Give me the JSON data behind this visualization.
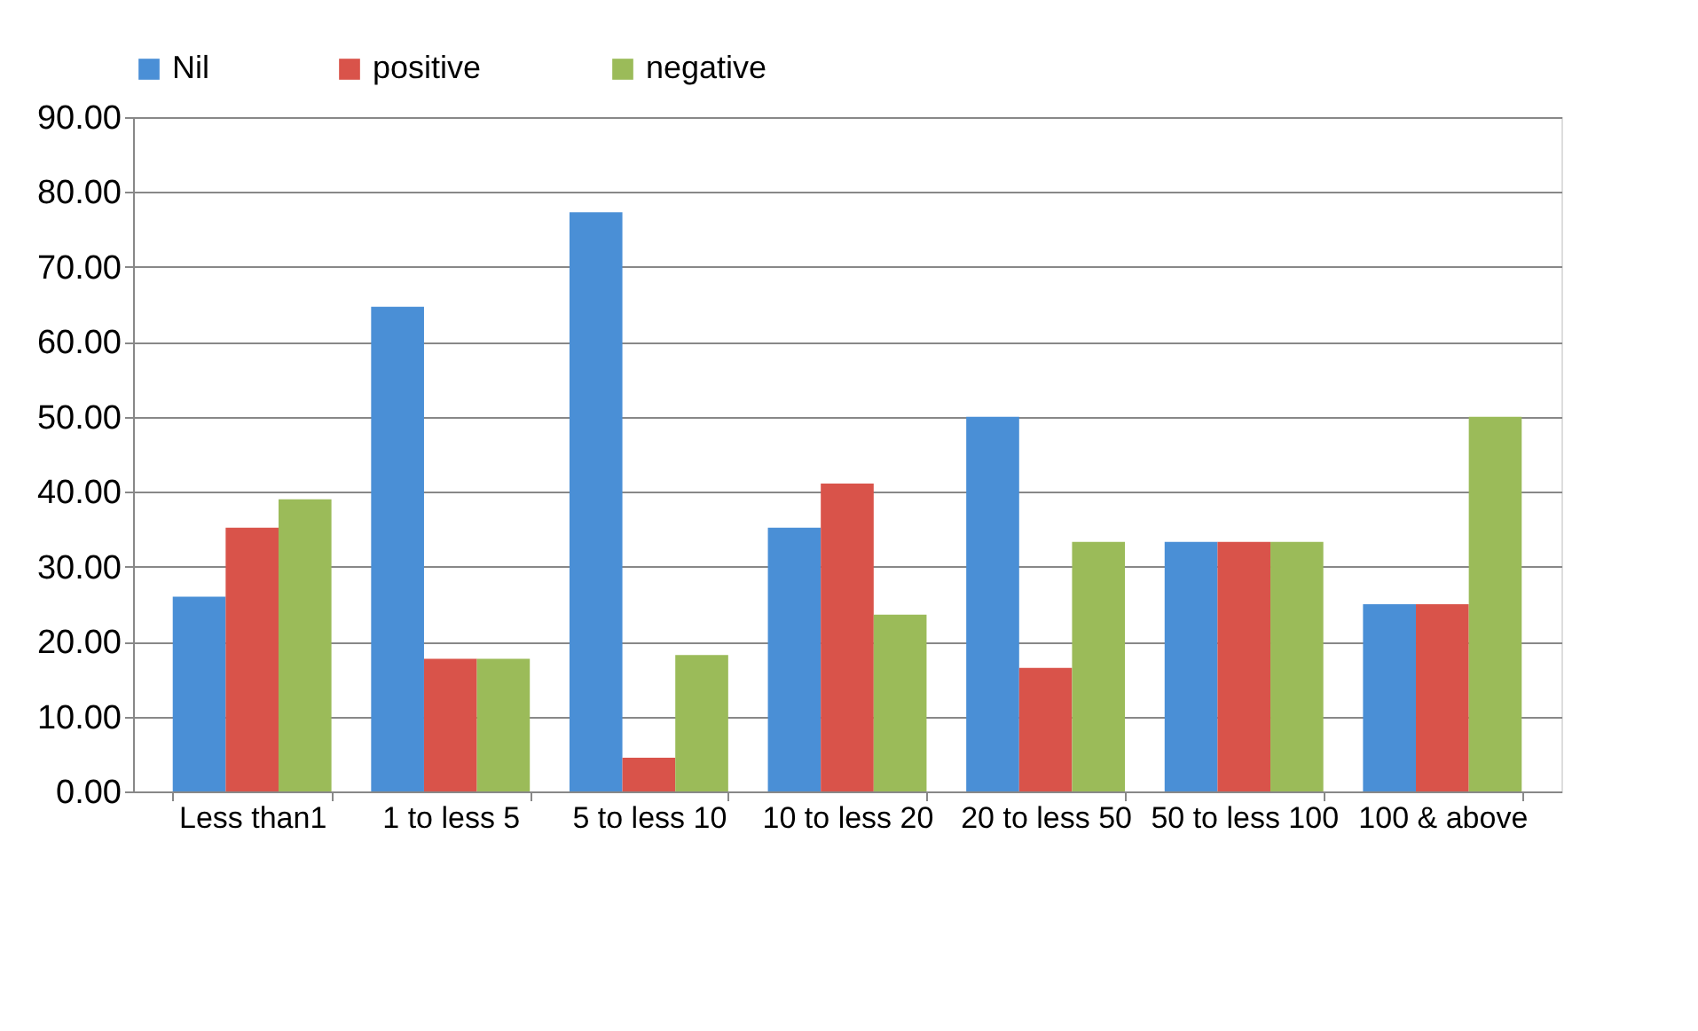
{
  "chart_data": {
    "type": "bar",
    "categories": [
      "Less than1",
      "1 to less 5",
      "5 to less 10",
      "10 to less 20",
      "20 to less 50",
      "50 to less 100",
      "100 & above"
    ],
    "series": [
      {
        "name": "Nil",
        "color": "#4a8fd6",
        "values": [
          26.0,
          64.7,
          77.3,
          35.2,
          50.0,
          33.3,
          25.0
        ]
      },
      {
        "name": "positive",
        "color": "#d9534a",
        "values": [
          35.2,
          17.7,
          4.5,
          41.1,
          16.5,
          33.3,
          25.0
        ]
      },
      {
        "name": "negative",
        "color": "#9bbb59",
        "values": [
          39.0,
          17.7,
          18.2,
          23.6,
          33.3,
          33.3,
          50.0
        ]
      }
    ],
    "ylim": [
      0,
      90
    ],
    "yticks": [
      {
        "value": 0,
        "label": "0.00"
      },
      {
        "value": 10,
        "label": "10.00"
      },
      {
        "value": 20,
        "label": "20.00"
      },
      {
        "value": 30,
        "label": "30.00"
      },
      {
        "value": 40,
        "label": "40.00"
      },
      {
        "value": 50,
        "label": "50.00"
      },
      {
        "value": 60,
        "label": "60.00"
      },
      {
        "value": 70,
        "label": "70.00"
      },
      {
        "value": 80,
        "label": "80.00"
      },
      {
        "value": 90,
        "label": "90.00"
      }
    ],
    "grid": "y",
    "legend": "top"
  }
}
